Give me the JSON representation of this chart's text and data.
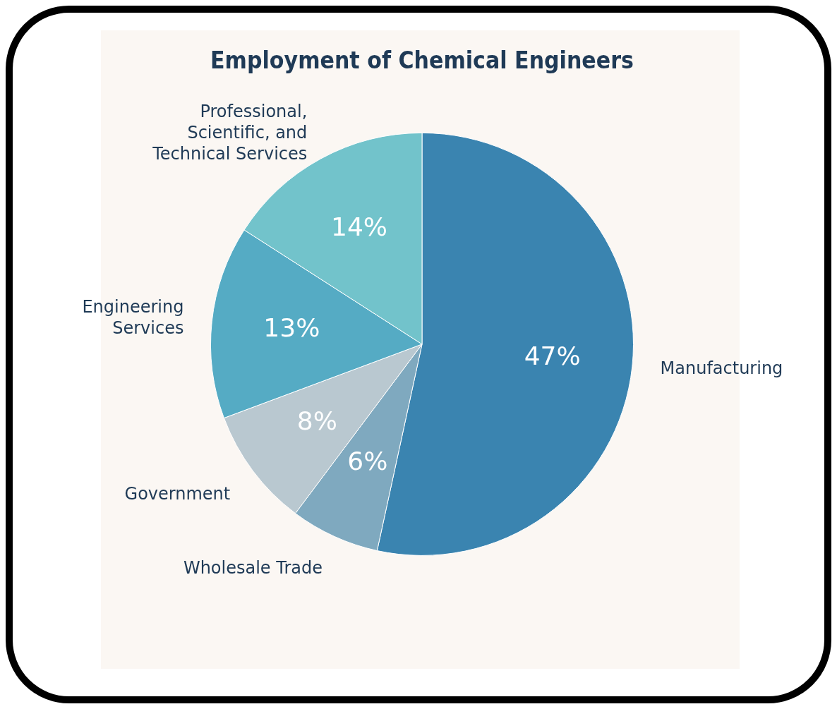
{
  "chart_data": {
    "type": "pie",
    "title": "Employment of Chemical Engineers",
    "categories": [
      "Manufacturing",
      "Wholesale Trade",
      "Government",
      "Engineering Services",
      "Professional, Scientific, and Technical Services"
    ],
    "values": [
      47,
      6,
      8,
      13,
      14
    ],
    "colors": [
      "#3a84b0",
      "#7fa9bf",
      "#b9c8d0",
      "#55abc4",
      "#72c3cb"
    ],
    "value_labels": [
      "47%",
      "6%",
      "8%",
      "13%",
      "14%"
    ],
    "legend": false
  }
}
